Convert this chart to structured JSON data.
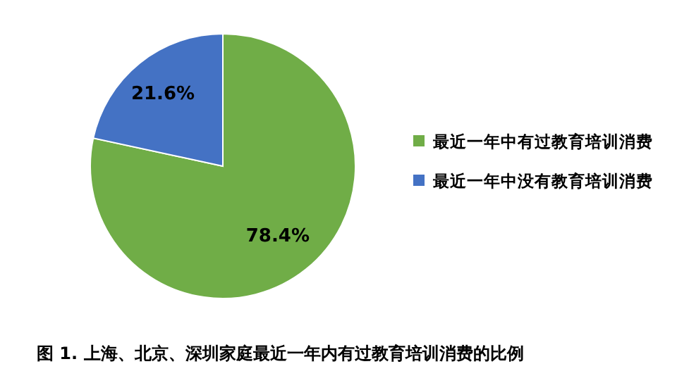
{
  "chart_data": {
    "type": "pie",
    "categories": [
      "最近一年中有过教育培训消费",
      "最近一年中没有教育培训消费"
    ],
    "values": [
      78.4,
      21.6
    ],
    "colors": [
      "#70ad47",
      "#4472c4"
    ],
    "value_labels": [
      "78.4%",
      "21.6%"
    ],
    "legend": "right",
    "annotations": [
      "图 1. 上海、北京、深圳家庭最近一年内有过教育培训消费的比例"
    ]
  }
}
